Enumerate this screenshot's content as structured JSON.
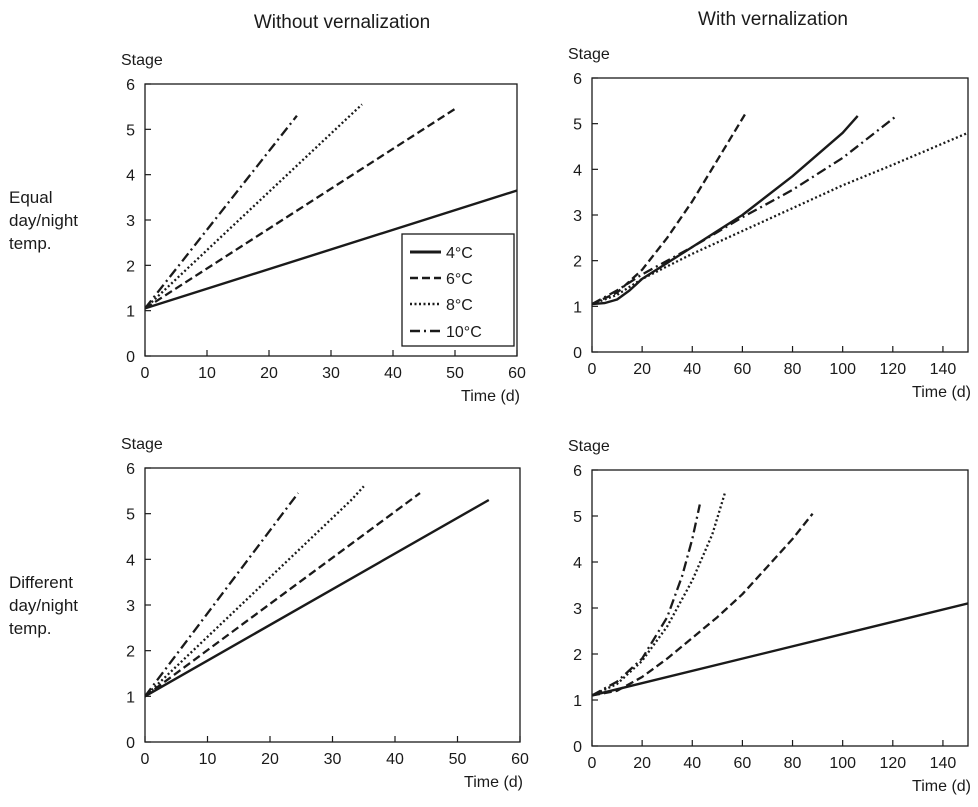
{
  "figure": {
    "column_titles": [
      "Without vernalization",
      "With vernalization"
    ],
    "row_labels": [
      [
        "Equal",
        "day/night",
        "temp."
      ],
      [
        "Different",
        "day/night",
        "temp."
      ]
    ]
  },
  "legend": {
    "placement": "inside-right, top-left panel",
    "items": [
      {
        "label": "4°C",
        "style": "solid"
      },
      {
        "label": "6°C",
        "style": "dashed"
      },
      {
        "label": "8°C",
        "style": "dotted"
      },
      {
        "label": "10°C",
        "style": "dashdot"
      }
    ]
  },
  "chart_data": [
    {
      "type": "line",
      "panel": "top-left",
      "ylabel": "Stage",
      "xlabel": "Time (d)",
      "xlim": [
        0,
        60
      ],
      "ylim": [
        0,
        6
      ],
      "xticks": [
        0,
        10,
        20,
        30,
        40,
        50,
        60
      ],
      "yticks": [
        0,
        1,
        2,
        3,
        4,
        5,
        6
      ],
      "grid": false,
      "series": [
        {
          "name": "4°C",
          "style": "solid",
          "points": [
            [
              0,
              1.05
            ],
            [
              60,
              3.65
            ]
          ]
        },
        {
          "name": "6°C",
          "style": "dashed",
          "points": [
            [
              0,
              1.05
            ],
            [
              50,
              5.45
            ]
          ]
        },
        {
          "name": "8°C",
          "style": "dotted",
          "points": [
            [
              0,
              1.05
            ],
            [
              35,
              5.55
            ]
          ]
        },
        {
          "name": "10°C",
          "style": "dashdot",
          "points": [
            [
              0,
              1.05
            ],
            [
              24.5,
              5.3
            ]
          ]
        }
      ]
    },
    {
      "type": "line",
      "panel": "top-right",
      "ylabel": "Stage",
      "xlabel": "Time (d)",
      "xlim": [
        0,
        150
      ],
      "ylim": [
        0,
        6
      ],
      "xticks": [
        0,
        20,
        40,
        60,
        80,
        100,
        120,
        140
      ],
      "yticks": [
        0,
        1,
        2,
        3,
        4,
        5,
        6
      ],
      "grid": false,
      "series": [
        {
          "name": "4°C",
          "style": "solid",
          "points": [
            [
              0,
              1.05
            ],
            [
              5,
              1.07
            ],
            [
              10,
              1.15
            ],
            [
              15,
              1.35
            ],
            [
              20,
              1.6
            ],
            [
              40,
              2.3
            ],
            [
              60,
              3.0
            ],
            [
              80,
              3.85
            ],
            [
              100,
              4.8
            ],
            [
              106,
              5.17
            ]
          ]
        },
        {
          "name": "6°C",
          "style": "dashed",
          "points": [
            [
              0,
              1.05
            ],
            [
              10,
              1.3
            ],
            [
              20,
              1.8
            ],
            [
              30,
              2.5
            ],
            [
              40,
              3.3
            ],
            [
              50,
              4.2
            ],
            [
              61,
              5.2
            ]
          ]
        },
        {
          "name": "8°C",
          "style": "dotted",
          "points": [
            [
              0,
              1.05
            ],
            [
              10,
              1.25
            ],
            [
              20,
              1.6
            ],
            [
              40,
              2.15
            ],
            [
              60,
              2.65
            ],
            [
              80,
              3.15
            ],
            [
              100,
              3.65
            ],
            [
              120,
              4.1
            ],
            [
              150,
              4.8
            ]
          ]
        },
        {
          "name": "10°C",
          "style": "dashdot",
          "points": [
            [
              0,
              1.05
            ],
            [
              10,
              1.35
            ],
            [
              20,
              1.7
            ],
            [
              40,
              2.3
            ],
            [
              60,
              2.95
            ],
            [
              80,
              3.55
            ],
            [
              100,
              4.25
            ],
            [
              121,
              5.15
            ]
          ]
        }
      ]
    },
    {
      "type": "line",
      "panel": "bottom-left",
      "ylabel": "Stage",
      "xlabel": "Time (d)",
      "xlim": [
        0,
        60
      ],
      "ylim": [
        0,
        6
      ],
      "xticks": [
        0,
        10,
        20,
        30,
        40,
        50,
        60
      ],
      "yticks": [
        0,
        1,
        2,
        3,
        4,
        5,
        6
      ],
      "grid": false,
      "series": [
        {
          "name": "4°C",
          "style": "solid",
          "points": [
            [
              0,
              1.0
            ],
            [
              55,
              5.3
            ]
          ]
        },
        {
          "name": "6°C",
          "style": "dashed",
          "points": [
            [
              0,
              1.0
            ],
            [
              44,
              5.45
            ]
          ]
        },
        {
          "name": "8°C",
          "style": "dotted",
          "points": [
            [
              0,
              1.0
            ],
            [
              33,
              5.3
            ],
            [
              35,
              5.6
            ]
          ]
        },
        {
          "name": "10°C",
          "style": "dashdot",
          "points": [
            [
              0,
              1.0
            ],
            [
              24.5,
              5.45
            ]
          ]
        }
      ]
    },
    {
      "type": "line",
      "panel": "bottom-right",
      "ylabel": "Stage",
      "xlabel": "Time (d)",
      "xlim": [
        0,
        150
      ],
      "ylim": [
        0,
        6
      ],
      "xticks": [
        0,
        20,
        40,
        60,
        80,
        100,
        120,
        140
      ],
      "yticks": [
        0,
        1,
        2,
        3,
        4,
        5,
        6
      ],
      "grid": false,
      "series": [
        {
          "name": "4°C",
          "style": "solid",
          "points": [
            [
              0,
              1.1
            ],
            [
              150,
              3.1
            ]
          ]
        },
        {
          "name": "6°C",
          "style": "dashed",
          "points": [
            [
              0,
              1.1
            ],
            [
              10,
              1.2
            ],
            [
              20,
              1.5
            ],
            [
              30,
              1.9
            ],
            [
              40,
              2.35
            ],
            [
              50,
              2.8
            ],
            [
              60,
              3.3
            ],
            [
              70,
              3.9
            ],
            [
              80,
              4.5
            ],
            [
              88,
              5.05
            ]
          ]
        },
        {
          "name": "8°C",
          "style": "dotted",
          "points": [
            [
              0,
              1.1
            ],
            [
              10,
              1.35
            ],
            [
              20,
              1.85
            ],
            [
              30,
              2.6
            ],
            [
              40,
              3.6
            ],
            [
              48,
              4.6
            ],
            [
              53,
              5.5
            ]
          ]
        },
        {
          "name": "10°C",
          "style": "dashdot",
          "points": [
            [
              0,
              1.1
            ],
            [
              10,
              1.4
            ],
            [
              20,
              1.9
            ],
            [
              30,
              2.8
            ],
            [
              36,
              3.7
            ],
            [
              40,
              4.5
            ],
            [
              43,
              5.25
            ]
          ]
        }
      ]
    }
  ]
}
